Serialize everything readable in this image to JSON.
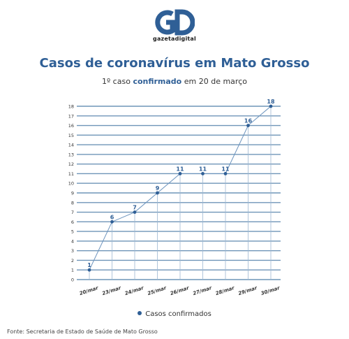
{
  "logo": {
    "mark": "GD",
    "text": "gazetadigital"
  },
  "chart_data": {
    "type": "line",
    "title": "Casos de coronavírus em Mato Grosso",
    "subtitle": {
      "prefix": "1º caso ",
      "highlight": "confirmado",
      "suffix": " em 20 de março"
    },
    "categories": [
      "20/mar",
      "23/mar",
      "24/mar",
      "25/mar",
      "26/mar",
      "27/mar",
      "28/mar",
      "29/mar",
      "30/mar"
    ],
    "series": [
      {
        "name": "Casos confirmados",
        "values": [
          1,
          6,
          7,
          9,
          11,
          11,
          11,
          16,
          18
        ],
        "color": "#2f5f96"
      }
    ],
    "ylim": [
      0,
      18
    ],
    "yticks": [
      0,
      1,
      2,
      3,
      4,
      5,
      6,
      7,
      8,
      9,
      10,
      11,
      12,
      13,
      14,
      15,
      16,
      17,
      18
    ],
    "grid": true,
    "gridColor": "#6f95b8",
    "legend": "bottom-center"
  },
  "source": "Fonte: Secretaria de Estado de Saúde de Mato Grosso"
}
